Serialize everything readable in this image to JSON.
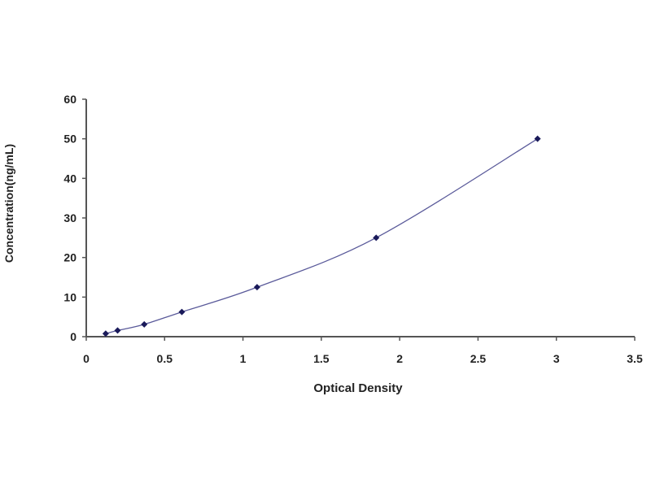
{
  "chart_data": {
    "type": "scatter",
    "title": "",
    "xlabel": "Optical Density",
    "ylabel": "Concentration(ng/mL)",
    "xlim": [
      0,
      3.5
    ],
    "ylim": [
      0,
      60
    ],
    "xticks": [
      "0",
      "0.5",
      "1",
      "1.5",
      "2",
      "2.5",
      "3",
      "3.5"
    ],
    "yticks": [
      "0",
      "10",
      "20",
      "30",
      "40",
      "50",
      "60"
    ],
    "grid": false,
    "legend": "none",
    "series": [
      {
        "x": [
          0.124,
          0.2,
          0.37,
          0.61,
          1.09,
          1.85,
          2.88
        ],
        "y": [
          0.78,
          1.56,
          3.12,
          6.25,
          12.5,
          25,
          50
        ],
        "marker": "diamond",
        "fit_line": "smooth curve"
      }
    ],
    "colors": {
      "line": "#5a5a9a",
      "marker": "#1a1a5a",
      "axis": "#555555"
    }
  }
}
